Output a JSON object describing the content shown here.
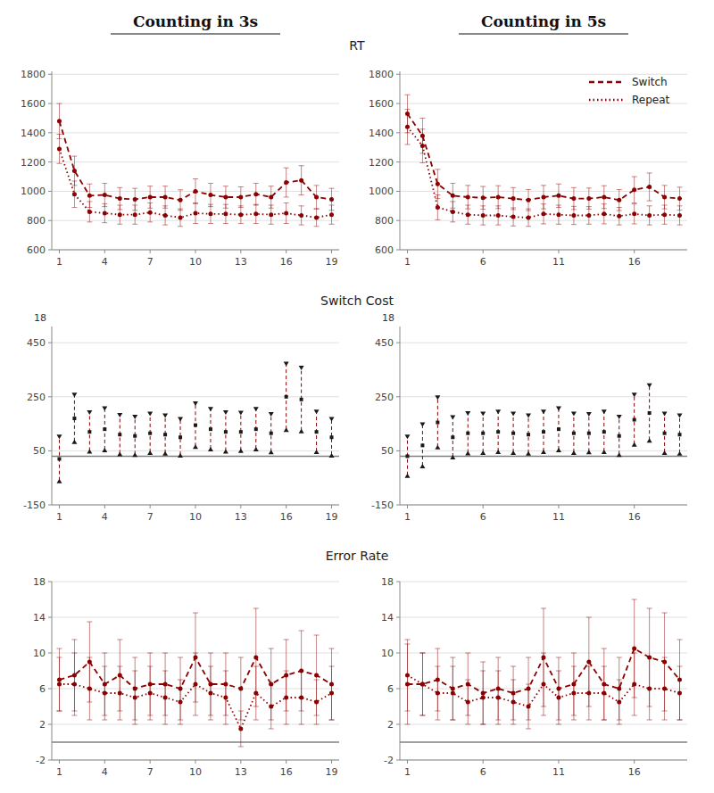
{
  "chart_data": [
    {
      "type": "line",
      "title": "Counting in 3s",
      "subtitle": "RT",
      "x": [
        1,
        2,
        3,
        4,
        5,
        6,
        7,
        8,
        9,
        10,
        11,
        12,
        13,
        14,
        15,
        16,
        17,
        18,
        19
      ],
      "series": [
        {
          "color": "#8B0000",
          "line_style": "dashed",
          "marker": "circle",
          "values": [
            1480,
            1140,
            970,
            975,
            950,
            945,
            960,
            960,
            940,
            1000,
            975,
            960,
            960,
            980,
            960,
            1060,
            1075,
            960,
            945
          ],
          "errors": [
            120,
            100,
            80,
            80,
            75,
            75,
            75,
            75,
            70,
            85,
            80,
            75,
            70,
            75,
            75,
            100,
            100,
            80,
            75
          ]
        },
        {
          "color": "#8B0000",
          "line_style": "dotted",
          "marker": "circle",
          "values": [
            1290,
            980,
            860,
            850,
            840,
            840,
            855,
            835,
            820,
            850,
            845,
            845,
            840,
            845,
            840,
            850,
            835,
            820,
            840
          ],
          "errors": [
            100,
            90,
            70,
            65,
            65,
            65,
            65,
            65,
            60,
            70,
            65,
            65,
            60,
            65,
            65,
            70,
            65,
            60,
            65
          ]
        }
      ],
      "xlim": [
        0.5,
        19.5
      ],
      "xticks": [
        1,
        4,
        7,
        10,
        13,
        16,
        19
      ],
      "ylim": [
        600,
        1820
      ],
      "yticks": [
        600,
        800,
        1000,
        1200,
        1400,
        1600,
        1800
      ],
      "grid": true
    },
    {
      "type": "line",
      "title": "Counting in 5s",
      "x": [
        1,
        2,
        3,
        4,
        5,
        6,
        7,
        8,
        9,
        10,
        11,
        12,
        13,
        14,
        15,
        16,
        17,
        18,
        19
      ],
      "series": [
        {
          "name": "Switch",
          "color": "#8B0000",
          "line_style": "dashed",
          "marker": "circle",
          "values": [
            1530,
            1380,
            1050,
            970,
            960,
            955,
            960,
            950,
            940,
            960,
            970,
            950,
            950,
            960,
            940,
            1010,
            1030,
            960,
            950
          ],
          "errors": [
            130,
            120,
            100,
            85,
            80,
            78,
            78,
            75,
            72,
            80,
            80,
            75,
            72,
            78,
            72,
            90,
            95,
            80,
            78
          ]
        },
        {
          "name": "Repeat",
          "color": "#8B0000",
          "line_style": "dotted",
          "marker": "circle",
          "values": [
            1440,
            1310,
            890,
            860,
            840,
            835,
            835,
            825,
            820,
            845,
            840,
            835,
            835,
            845,
            830,
            845,
            835,
            840,
            835
          ],
          "errors": [
            120,
            115,
            85,
            70,
            65,
            65,
            65,
            62,
            60,
            68,
            65,
            62,
            60,
            68,
            60,
            68,
            65,
            65,
            65
          ]
        }
      ],
      "xlim": [
        0.5,
        19.5
      ],
      "xticks": [
        1,
        6,
        11,
        16
      ],
      "ylim": [
        600,
        1820
      ],
      "yticks": [
        600,
        800,
        1000,
        1200,
        1400,
        1600,
        1800
      ],
      "grid": true,
      "legend": "upper right"
    },
    {
      "type": "errorbar",
      "subtitle": "Switch Cost",
      "annotations": [
        "18"
      ],
      "x": [
        1,
        2,
        3,
        4,
        5,
        6,
        7,
        8,
        9,
        10,
        11,
        12,
        13,
        14,
        15,
        16,
        17,
        18,
        19
      ],
      "values": [
        20,
        170,
        120,
        130,
        110,
        105,
        115,
        110,
        100,
        145,
        130,
        120,
        120,
        130,
        115,
        250,
        240,
        120,
        100
      ],
      "errors": [
        80,
        85,
        70,
        75,
        70,
        68,
        70,
        68,
        65,
        78,
        72,
        70,
        68,
        72,
        68,
        120,
        115,
        72,
        65
      ],
      "color": "#8B0000",
      "marker": "square",
      "line_style": "dashed",
      "hline": 30,
      "xlim": [
        0.5,
        19.5
      ],
      "xticks": [
        1,
        4,
        7,
        10,
        13,
        16,
        19
      ],
      "ylim": [
        -150,
        510
      ],
      "yticks": [
        -150,
        50,
        250,
        450
      ],
      "grid": true
    },
    {
      "type": "errorbar",
      "annotations": [
        "18"
      ],
      "x": [
        1,
        2,
        3,
        4,
        5,
        6,
        7,
        8,
        9,
        10,
        11,
        12,
        13,
        14,
        15,
        16,
        17,
        18,
        19
      ],
      "values": [
        30,
        70,
        155,
        100,
        115,
        115,
        120,
        115,
        110,
        120,
        130,
        115,
        115,
        120,
        105,
        165,
        190,
        115,
        110
      ],
      "errors": [
        70,
        75,
        90,
        72,
        72,
        70,
        72,
        70,
        68,
        72,
        75,
        70,
        68,
        72,
        68,
        90,
        100,
        70,
        68
      ],
      "color": "#8B0000",
      "marker": "square",
      "line_style": "dashed",
      "hline": 30,
      "xlim": [
        0.5,
        19.5
      ],
      "xticks": [
        1,
        6,
        11,
        16
      ],
      "ylim": [
        -150,
        510
      ],
      "yticks": [
        -150,
        50,
        250,
        450
      ],
      "grid": true
    },
    {
      "type": "line",
      "subtitle": "Error Rate",
      "x": [
        1,
        2,
        3,
        4,
        5,
        6,
        7,
        8,
        9,
        10,
        11,
        12,
        13,
        14,
        15,
        16,
        17,
        18,
        19
      ],
      "series": [
        {
          "color": "#8B0000",
          "line_style": "dashed",
          "marker": "circle",
          "values": [
            7.0,
            7.5,
            9.0,
            6.5,
            7.5,
            6.0,
            6.5,
            6.5,
            6.0,
            9.5,
            6.5,
            6.5,
            6.0,
            9.5,
            6.5,
            7.5,
            8.0,
            7.5,
            6.5
          ],
          "errors": [
            3.5,
            4.0,
            4.5,
            3.5,
            4.0,
            3.5,
            3.5,
            3.5,
            3.5,
            5.0,
            3.5,
            3.5,
            3.5,
            5.5,
            4.0,
            4.0,
            4.5,
            4.5,
            4.0
          ]
        },
        {
          "color": "#8B0000",
          "line_style": "dotted",
          "marker": "circle",
          "values": [
            6.5,
            6.5,
            6.0,
            5.5,
            5.5,
            5.0,
            5.5,
            5.0,
            4.5,
            6.5,
            5.5,
            5.0,
            1.5,
            5.5,
            4.0,
            5.0,
            5.0,
            4.5,
            5.5
          ],
          "errors": [
            3.0,
            3.5,
            3.5,
            3.0,
            3.0,
            3.0,
            3.0,
            3.0,
            2.5,
            3.5,
            3.0,
            3.0,
            2.0,
            3.0,
            2.5,
            3.0,
            3.0,
            2.5,
            3.0
          ]
        }
      ],
      "hline": 0,
      "xlim": [
        0.5,
        19.5
      ],
      "xticks": [
        1,
        4,
        7,
        10,
        13,
        16,
        19
      ],
      "ylim": [
        -2,
        18
      ],
      "yticks": [
        -2,
        2,
        6,
        10,
        14,
        18
      ],
      "grid": true
    },
    {
      "type": "line",
      "x": [
        1,
        2,
        3,
        4,
        5,
        6,
        7,
        8,
        9,
        10,
        11,
        12,
        13,
        14,
        15,
        16,
        17,
        18,
        19
      ],
      "series": [
        {
          "color": "#8B0000",
          "line_style": "dashed",
          "marker": "circle",
          "values": [
            6.5,
            6.5,
            7.0,
            6.0,
            6.5,
            5.5,
            6.0,
            5.5,
            6.0,
            9.5,
            6.0,
            6.5,
            9.0,
            6.5,
            6.0,
            10.5,
            9.5,
            9.0,
            7.0
          ],
          "errors": [
            4.5,
            3.5,
            3.5,
            3.5,
            3.5,
            3.5,
            3.5,
            3.0,
            3.5,
            5.5,
            3.5,
            3.5,
            5.0,
            4.0,
            3.5,
            5.5,
            5.5,
            5.5,
            4.5
          ]
        },
        {
          "color": "#8B0000",
          "line_style": "dotted",
          "marker": "circle",
          "values": [
            7.5,
            6.5,
            5.5,
            5.5,
            4.5,
            5.0,
            5.0,
            4.5,
            4.0,
            6.5,
            5.0,
            5.5,
            5.5,
            5.5,
            4.5,
            6.5,
            6.0,
            6.0,
            5.5
          ],
          "errors": [
            4.0,
            3.5,
            3.0,
            3.0,
            2.5,
            3.0,
            3.0,
            2.5,
            2.5,
            3.5,
            3.0,
            3.0,
            3.0,
            3.0,
            2.5,
            3.5,
            3.5,
            3.5,
            3.0
          ]
        }
      ],
      "hline": 0,
      "xlim": [
        0.5,
        19.5
      ],
      "xticks": [
        1,
        6,
        11,
        16
      ],
      "ylim": [
        -2,
        18
      ],
      "yticks": [
        -2,
        2,
        6,
        10,
        14,
        18
      ],
      "grid": true
    }
  ]
}
